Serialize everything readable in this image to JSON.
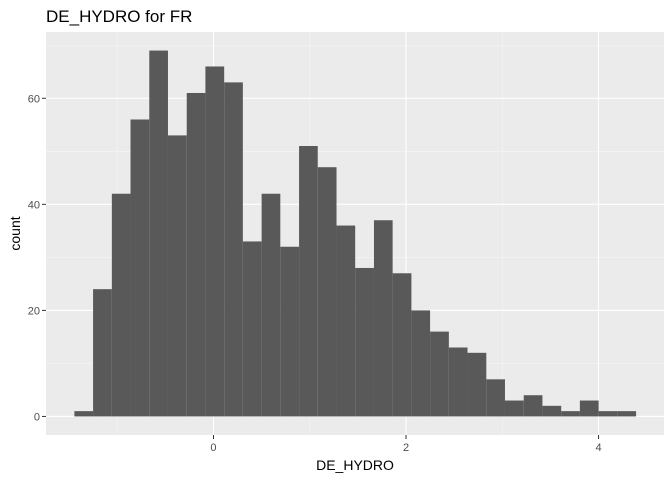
{
  "chart_data": {
    "type": "bar",
    "title": "DE_HYDRO  for FR",
    "xlabel": "DE_HYDRO",
    "ylabel": "count",
    "bin_width": 0.1945,
    "bins": [
      {
        "start": -1.445,
        "end": -1.251,
        "count": 1
      },
      {
        "start": -1.251,
        "end": -1.056,
        "count": 24
      },
      {
        "start": -1.056,
        "end": -0.862,
        "count": 42
      },
      {
        "start": -0.862,
        "end": -0.667,
        "count": 56
      },
      {
        "start": -0.667,
        "end": -0.473,
        "count": 69
      },
      {
        "start": -0.473,
        "end": -0.278,
        "count": 53
      },
      {
        "start": -0.278,
        "end": -0.084,
        "count": 61
      },
      {
        "start": -0.084,
        "end": 0.111,
        "count": 66
      },
      {
        "start": 0.111,
        "end": 0.305,
        "count": 63
      },
      {
        "start": 0.305,
        "end": 0.5,
        "count": 33
      },
      {
        "start": 0.5,
        "end": 0.694,
        "count": 42
      },
      {
        "start": 0.694,
        "end": 0.889,
        "count": 32
      },
      {
        "start": 0.889,
        "end": 1.083,
        "count": 51
      },
      {
        "start": 1.083,
        "end": 1.278,
        "count": 47
      },
      {
        "start": 1.278,
        "end": 1.472,
        "count": 36
      },
      {
        "start": 1.472,
        "end": 1.667,
        "count": 28
      },
      {
        "start": 1.667,
        "end": 1.861,
        "count": 37
      },
      {
        "start": 1.861,
        "end": 2.056,
        "count": 27
      },
      {
        "start": 2.056,
        "end": 2.25,
        "count": 20
      },
      {
        "start": 2.25,
        "end": 2.445,
        "count": 16
      },
      {
        "start": 2.445,
        "end": 2.639,
        "count": 13
      },
      {
        "start": 2.639,
        "end": 2.834,
        "count": 12
      },
      {
        "start": 2.834,
        "end": 3.028,
        "count": 7
      },
      {
        "start": 3.028,
        "end": 3.223,
        "count": 3
      },
      {
        "start": 3.223,
        "end": 3.417,
        "count": 4
      },
      {
        "start": 3.417,
        "end": 3.612,
        "count": 2
      },
      {
        "start": 3.612,
        "end": 3.806,
        "count": 1
      },
      {
        "start": 3.806,
        "end": 4.001,
        "count": 3
      },
      {
        "start": 4.001,
        "end": 4.195,
        "count": 1
      },
      {
        "start": 4.195,
        "end": 4.39,
        "count": 1
      }
    ],
    "xlim": [
      -1.74,
      4.68
    ],
    "ylim": [
      -3.5,
      72.5
    ],
    "x_ticks": [
      0,
      2,
      4
    ],
    "x_minor_ticks": [
      -1,
      1,
      3
    ],
    "y_ticks": [
      0,
      20,
      40,
      60
    ],
    "y_minor_ticks": [
      10,
      30,
      50,
      70
    ],
    "grid": true,
    "colors": {
      "bar": "#595959",
      "panel_bg": "#ebebeb",
      "grid_major": "#ffffff",
      "grid_minor": "#f5f5f5",
      "tick_text": "#4d4d4d"
    }
  }
}
